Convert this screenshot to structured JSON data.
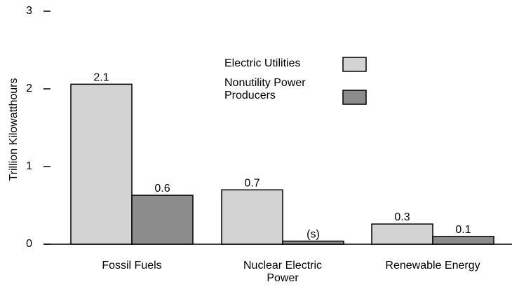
{
  "chart_data": {
    "type": "bar",
    "y_label": "Trillion Kilowatthours",
    "categories": [
      "Fossil Fuels",
      "Nuclear Electric Power",
      "Renewable Energy"
    ],
    "series": [
      {
        "name": "Electric Utilities",
        "color": "#d3d3d3",
        "values": [
          2.06,
          0.7,
          0.26
        ],
        "value_labels": [
          "2.1",
          "0.7",
          "0.3"
        ]
      },
      {
        "name": "Nonutility Power Producers",
        "color": "#8c8c8c",
        "values": [
          0.63,
          0.04,
          0.1
        ],
        "value_labels": [
          "0.6",
          "(s)",
          "0.1"
        ]
      }
    ],
    "ylim": [
      0,
      3
    ],
    "yticks": [
      0,
      1,
      2,
      3
    ]
  }
}
